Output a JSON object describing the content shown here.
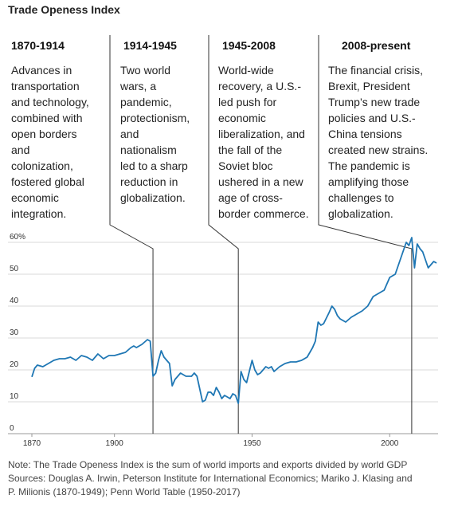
{
  "chart_data": {
    "type": "line",
    "title": "Trade Openess Index",
    "xlabel": "",
    "ylabel": "",
    "xlim": [
      1870,
      2017
    ],
    "ylim": [
      0,
      60
    ],
    "y_ticks": [
      {
        "value": 0,
        "label": "0"
      },
      {
        "value": 10,
        "label": "10"
      },
      {
        "value": 20,
        "label": "20"
      },
      {
        "value": 30,
        "label": "30"
      },
      {
        "value": 40,
        "label": "40"
      },
      {
        "value": 50,
        "label": "50"
      },
      {
        "value": 60,
        "label": "60%"
      }
    ],
    "x_ticks": [
      {
        "value": 1870,
        "label": "1870"
      },
      {
        "value": 1900,
        "label": "1900"
      },
      {
        "value": 1950,
        "label": "1950"
      },
      {
        "value": 2000,
        "label": "2000"
      }
    ],
    "grid": "horizontal",
    "line_color": "#1f77b4",
    "x": [
      1870,
      1871,
      1872,
      1874,
      1876,
      1878,
      1880,
      1882,
      1884,
      1886,
      1888,
      1890,
      1892,
      1894,
      1896,
      1898,
      1900,
      1902,
      1904,
      1906,
      1907,
      1908,
      1910,
      1912,
      1913,
      1914,
      1915,
      1916,
      1917,
      1918,
      1919,
      1920,
      1921,
      1922,
      1923,
      1924,
      1926,
      1928,
      1929,
      1930,
      1931,
      1932,
      1933,
      1934,
      1935,
      1936,
      1937,
      1938,
      1939,
      1940,
      1941,
      1942,
      1943,
      1944,
      1945,
      1946,
      1947,
      1948,
      1949,
      1950,
      1951,
      1952,
      1953,
      1954,
      1955,
      1956,
      1957,
      1958,
      1960,
      1962,
      1964,
      1966,
      1968,
      1970,
      1972,
      1973,
      1974,
      1975,
      1976,
      1978,
      1979,
      1980,
      1981,
      1982,
      1984,
      1986,
      1988,
      1990,
      1992,
      1994,
      1996,
      1998,
      2000,
      2002,
      2004,
      2006,
      2007,
      2008,
      2009,
      2010,
      2011,
      2012,
      2014,
      2016,
      2017
    ],
    "series": [
      {
        "name": "",
        "values": [
          17.8,
          20.5,
          21.5,
          21,
          22,
          23,
          23.5,
          23.5,
          24,
          23,
          24.5,
          24,
          23,
          25,
          23.5,
          24.5,
          24.5,
          25,
          25.5,
          27,
          27.5,
          27,
          28,
          29.5,
          29,
          18,
          19,
          23,
          26,
          24,
          23,
          22,
          15,
          17,
          18,
          19,
          18,
          18,
          19,
          18,
          14,
          10,
          10.5,
          13,
          13,
          12,
          14.5,
          13,
          11,
          12,
          11.5,
          11,
          12.5,
          12,
          9.5,
          19.5,
          17,
          16,
          19.5,
          23,
          20,
          18.5,
          19,
          20,
          21,
          20.5,
          21,
          19.5,
          21,
          22,
          22.5,
          22.5,
          23,
          24,
          27,
          29,
          35,
          34,
          34.5,
          38,
          40,
          39,
          37,
          36,
          35,
          36.5,
          37.5,
          38.5,
          40,
          43,
          44,
          45,
          49,
          50,
          55,
          60,
          59,
          61.5,
          52,
          59.5,
          58,
          57,
          52,
          54,
          53.5
        ]
      }
    ]
  },
  "eras": [
    {
      "period": "1870-1914",
      "text": "Advances in\ntransportation\nand technology,\ncombined with\nopen borders\nand\ncolonization,\nfostered global\neconomic\nintegration.",
      "marker_year": 1914
    },
    {
      "period": "1914-1945",
      "text": "Two world\nwars, a\npandemic,\nprotectionism,\nand\nnationalism\nled to a sharp\nreduction in\nglobalization.",
      "marker_year": 1945
    },
    {
      "period": "1945-2008",
      "text": "World-wide\nrecovery, a U.S.-\nled push for\neconomic\nliberalization, and\nthe fall of the\nSoviet bloc\nushered in a new\nage of cross-\nborder commerce.",
      "marker_year": 2008
    },
    {
      "period": "2008-present",
      "text": "The financial crisis,\nBrexit, President\nTrump’s new trade\npolicies and U.S.-\nChina tensions\ncreated new strains.\nThe pandemic is\namplifying those\nchallenges to\nglobalization.",
      "marker_year": null
    }
  ],
  "footnote": {
    "note": "Note: The Trade Openess Index is the sum of world imports and exports divided by world GDP",
    "sources_line1": "Sources: Douglas A. Irwin, Peterson Institute for International Economics; Mariko J. Klasing and",
    "sources_line2": "P. Milionis (1870-1949); Penn World Table (1950-2017)"
  }
}
